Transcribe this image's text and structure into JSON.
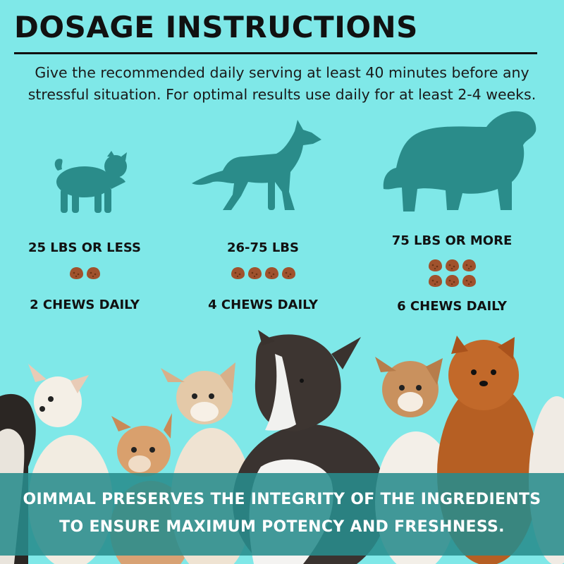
{
  "header": {
    "title": "DOSAGE INSTRUCTIONS",
    "intro_line1": "Give the recommended daily serving at least 40 minutes before any",
    "intro_line2": "stressful situation. For optimal results use daily for at least 2-4 weeks."
  },
  "doses": [
    {
      "weight": "25 LBS OR LESS",
      "chews": 2,
      "daily": "2 CHEWS DAILY",
      "icon": "pug-silhouette-icon"
    },
    {
      "weight": "26-75 LBS",
      "chews": 4,
      "daily": "4 CHEWS DAILY",
      "icon": "shepherd-silhouette-icon"
    },
    {
      "weight": "75 LBS OR MORE",
      "chews": 6,
      "daily": "6 CHEWS DAILY",
      "icon": "large-dog-silhouette-icon"
    }
  ],
  "banner": {
    "line1": "OIMMAL PRESERVES THE INTEGRITY OF THE INGREDIENTS",
    "line2": "TO ENSURE MAXIMUM POTENCY AND FRESHNESS."
  },
  "colors": {
    "background": "#7fe8e8",
    "silhouette": "#2a8c8a",
    "chew": "#a0522d",
    "banner": "#2a8c8c"
  }
}
